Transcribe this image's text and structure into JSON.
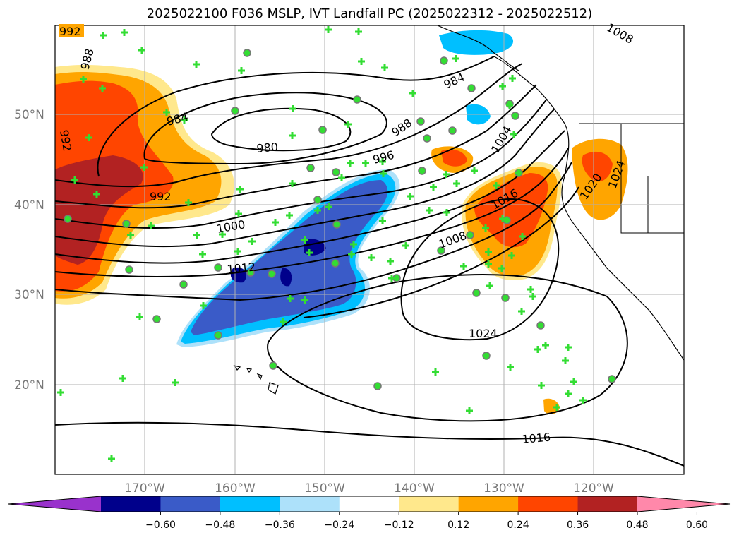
{
  "title": "2025022100 F036 MSLP, IVT Landfall PC (2025022312 - 2025022512)",
  "lat_labels": [
    "50°N",
    "40°N",
    "30°N",
    "20°N"
  ],
  "lon_labels": [
    "170°W",
    "160°W",
    "150°W",
    "140°W",
    "130°W",
    "120°W"
  ],
  "contour_labels": [
    "992",
    "988",
    "984",
    "980",
    "992",
    "992",
    "996",
    "984",
    "988",
    "1004",
    "1000",
    "1008",
    "1012",
    "1016",
    "1020",
    "1024",
    "1016",
    "1024",
    "1008"
  ],
  "colorbar": {
    "ticks": [
      "−0.60",
      "−0.48",
      "−0.36",
      "−0.24",
      "−0.12",
      "0.12",
      "0.24",
      "0.36",
      "0.48",
      "0.60"
    ],
    "colors": [
      "#9932CC",
      "#00008B",
      "#3A5BC8",
      "#00BFFF",
      "#ADE1FA",
      "#FFFFFF",
      "#FFE88C",
      "#FFA500",
      "#FF4500",
      "#B22222",
      "#FF88AA"
    ]
  }
}
